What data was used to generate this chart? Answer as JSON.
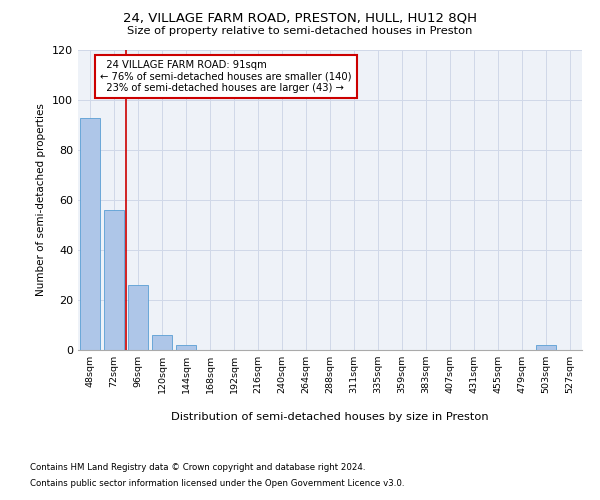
{
  "title_line1": "24, VILLAGE FARM ROAD, PRESTON, HULL, HU12 8QH",
  "title_line2": "Size of property relative to semi-detached houses in Preston",
  "xlabel": "Distribution of semi-detached houses by size in Preston",
  "ylabel": "Number of semi-detached properties",
  "bar_color": "#aec6e8",
  "bar_edge_color": "#5a9fd4",
  "categories": [
    "48sqm",
    "72sqm",
    "96sqm",
    "120sqm",
    "144sqm",
    "168sqm",
    "192sqm",
    "216sqm",
    "240sqm",
    "264sqm",
    "288sqm",
    "311sqm",
    "335sqm",
    "359sqm",
    "383sqm",
    "407sqm",
    "431sqm",
    "455sqm",
    "479sqm",
    "503sqm",
    "527sqm"
  ],
  "values": [
    93,
    56,
    26,
    6,
    2,
    0,
    0,
    0,
    0,
    0,
    0,
    0,
    0,
    0,
    0,
    0,
    0,
    0,
    0,
    2,
    0
  ],
  "ylim": [
    0,
    120
  ],
  "yticks": [
    0,
    20,
    40,
    60,
    80,
    100,
    120
  ],
  "property_label": "24 VILLAGE FARM ROAD: 91sqm",
  "pct_smaller": 76,
  "n_smaller": 140,
  "pct_larger": 23,
  "n_larger": 43,
  "vline_color": "#cc0000",
  "annotation_box_color": "#cc0000",
  "grid_color": "#d0d8e8",
  "background_color": "#eef2f8",
  "footnote1": "Contains HM Land Registry data © Crown copyright and database right 2024.",
  "footnote2": "Contains public sector information licensed under the Open Government Licence v3.0."
}
